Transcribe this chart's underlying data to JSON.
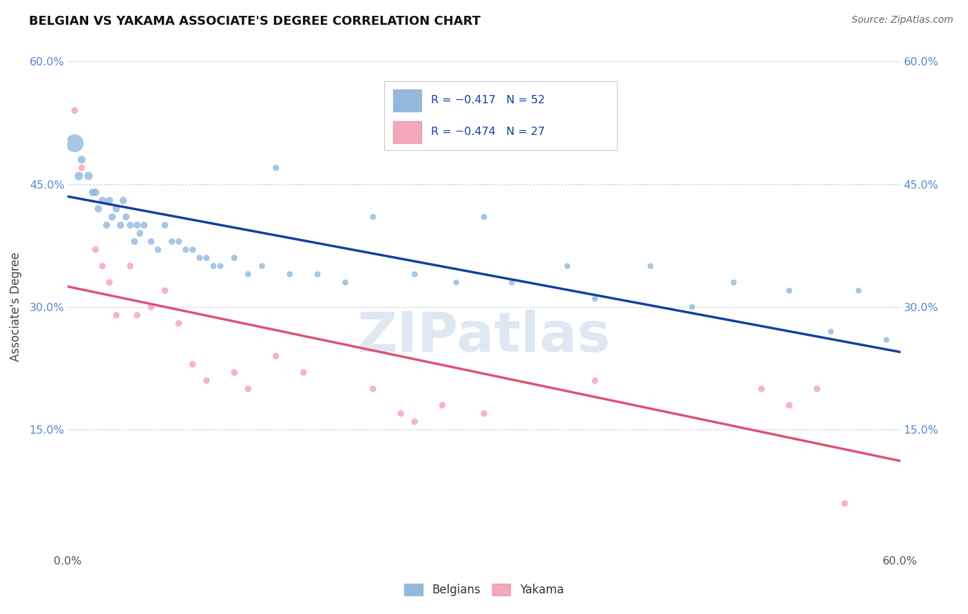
{
  "title": "BELGIAN VS YAKAMA ASSOCIATE'S DEGREE CORRELATION CHART",
  "source": "Source: ZipAtlas.com",
  "ylabel": "Associate's Degree",
  "xlim": [
    0.0,
    0.6
  ],
  "ylim": [
    0.0,
    0.6
  ],
  "xticks": [
    0.0,
    0.12,
    0.24,
    0.36,
    0.48,
    0.6
  ],
  "xtick_labels": [
    "0.0%",
    "",
    "",
    "",
    "",
    "60.0%"
  ],
  "yticks": [
    0.0,
    0.15,
    0.3,
    0.45,
    0.6
  ],
  "ytick_labels": [
    "",
    "15.0%",
    "30.0%",
    "45.0%",
    "60.0%"
  ],
  "legend_line1": "R = −0.417   N = 52",
  "legend_line2": "R = −0.474   N = 27",
  "blue_scatter_color": "#92b8dc",
  "pink_scatter_color": "#f4a8bc",
  "blue_line_color": "#1040a0",
  "pink_line_color": "#e05070",
  "legend_text_color": "#1040a0",
  "watermark": "ZIPatlas",
  "watermark_color": "#c8d8ea",
  "title_color": "#111111",
  "source_color": "#666666",
  "tick_color_y": "#5588cc",
  "tick_color_x": "#555555",
  "grid_color": "#cccccc",
  "ylabel_color": "#444444",
  "blue_scatter_x": [
    0.005,
    0.008,
    0.01,
    0.015,
    0.018,
    0.02,
    0.022,
    0.025,
    0.028,
    0.03,
    0.032,
    0.035,
    0.038,
    0.04,
    0.042,
    0.045,
    0.048,
    0.05,
    0.052,
    0.055,
    0.06,
    0.065,
    0.07,
    0.075,
    0.08,
    0.085,
    0.09,
    0.095,
    0.1,
    0.105,
    0.11,
    0.12,
    0.13,
    0.14,
    0.15,
    0.16,
    0.18,
    0.2,
    0.22,
    0.25,
    0.28,
    0.3,
    0.32,
    0.36,
    0.38,
    0.42,
    0.45,
    0.48,
    0.52,
    0.55,
    0.57,
    0.59
  ],
  "blue_scatter_y": [
    0.5,
    0.46,
    0.48,
    0.46,
    0.44,
    0.44,
    0.42,
    0.43,
    0.4,
    0.43,
    0.41,
    0.42,
    0.4,
    0.43,
    0.41,
    0.4,
    0.38,
    0.4,
    0.39,
    0.4,
    0.38,
    0.37,
    0.4,
    0.38,
    0.38,
    0.37,
    0.37,
    0.36,
    0.36,
    0.35,
    0.35,
    0.36,
    0.34,
    0.35,
    0.47,
    0.34,
    0.34,
    0.33,
    0.41,
    0.34,
    0.33,
    0.41,
    0.33,
    0.35,
    0.31,
    0.35,
    0.3,
    0.33,
    0.32,
    0.27,
    0.32,
    0.26
  ],
  "blue_scatter_sizes": [
    350,
    80,
    70,
    75,
    65,
    65,
    60,
    65,
    55,
    62,
    58,
    60,
    55,
    60,
    55,
    52,
    50,
    55,
    50,
    52,
    48,
    46,
    50,
    46,
    46,
    44,
    44,
    42,
    44,
    42,
    42,
    44,
    40,
    40,
    42,
    40,
    40,
    40,
    40,
    40,
    38,
    40,
    38,
    38,
    38,
    38,
    38,
    38,
    38,
    38,
    38,
    38
  ],
  "pink_scatter_x": [
    0.005,
    0.01,
    0.02,
    0.025,
    0.03,
    0.035,
    0.045,
    0.05,
    0.06,
    0.07,
    0.08,
    0.09,
    0.1,
    0.12,
    0.13,
    0.15,
    0.17,
    0.22,
    0.24,
    0.25,
    0.27,
    0.3,
    0.38,
    0.5,
    0.52,
    0.54,
    0.56
  ],
  "pink_scatter_y": [
    0.54,
    0.47,
    0.37,
    0.35,
    0.33,
    0.29,
    0.35,
    0.29,
    0.3,
    0.32,
    0.28,
    0.23,
    0.21,
    0.22,
    0.2,
    0.24,
    0.22,
    0.2,
    0.17,
    0.16,
    0.18,
    0.17,
    0.21,
    0.2,
    0.18,
    0.2,
    0.06
  ],
  "pink_scatter_sizes": [
    48,
    48,
    48,
    48,
    48,
    48,
    48,
    48,
    48,
    48,
    48,
    48,
    48,
    48,
    48,
    48,
    48,
    48,
    48,
    48,
    48,
    48,
    48,
    48,
    48,
    48,
    48
  ],
  "blue_line_x": [
    0.0,
    0.6
  ],
  "blue_line_y": [
    0.435,
    0.245
  ],
  "pink_line_x": [
    0.0,
    0.6
  ],
  "pink_line_y": [
    0.325,
    0.112
  ]
}
